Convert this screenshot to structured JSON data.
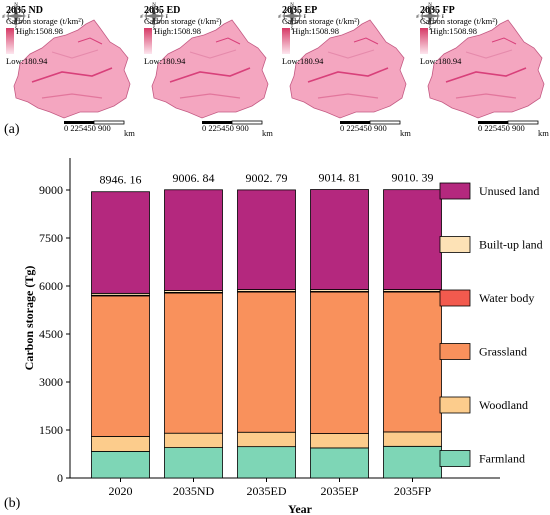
{
  "panel_a": {
    "label": "(a)",
    "maps": [
      {
        "title": "2035 ND"
      },
      {
        "title": "2035 ED"
      },
      {
        "title": "2035 EP"
      },
      {
        "title": "2035 FP"
      }
    ],
    "legend_title": "Carbon storage (t/km²)",
    "legend_high": "High:1508.98",
    "legend_low": "Low:180.94",
    "scale_ticks": "0   225450     900",
    "scale_unit": "km",
    "compass": {
      "n": "N",
      "s": "S",
      "e": "E",
      "w": "W"
    },
    "colors": {
      "high": "#d63a66",
      "low": "#fde6ee",
      "map_fill": "#f4a6c0"
    }
  },
  "panel_b": {
    "label": "(b)"
  },
  "chart_data": {
    "type": "bar",
    "stacked": true,
    "categories": [
      "2020",
      "2035ND",
      "2035ED",
      "2035EP",
      "2035FP"
    ],
    "totals": [
      "8946. 16",
      "9006. 84",
      "9002. 79",
      "9014. 81",
      "9010. 39"
    ],
    "series": [
      {
        "name": "Farmland",
        "color": "#7ed6b6",
        "values": [
          830,
          950,
          980,
          940,
          990
        ]
      },
      {
        "name": "Woodland",
        "color": "#fccc8c",
        "values": [
          470,
          450,
          450,
          450,
          450
        ]
      },
      {
        "name": "Grassland",
        "color": "#f9915c",
        "values": [
          4390,
          4380,
          4380,
          4420,
          4370
        ]
      },
      {
        "name": "Water body",
        "color": "#f25a4e",
        "values": [
          20,
          20,
          20,
          20,
          20
        ]
      },
      {
        "name": "Built-up land",
        "color": "#fde2b6",
        "values": [
          60,
          60,
          60,
          60,
          60
        ]
      },
      {
        "name": "Unused land",
        "color": "#b4287e",
        "values": [
          3176.16,
          3146.84,
          3112.79,
          3124.81,
          3120.39
        ]
      }
    ],
    "xlabel": "Year",
    "ylabel": "Carbon storage (Tg)",
    "ylim": [
      0,
      10000
    ],
    "yticks": [
      "0",
      "1500",
      "3000",
      "4500",
      "6000",
      "7500",
      "9000"
    ],
    "ytick_values": [
      0,
      1500,
      3000,
      4500,
      6000,
      7500,
      9000
    ],
    "grid": false,
    "legend_position": "right"
  }
}
